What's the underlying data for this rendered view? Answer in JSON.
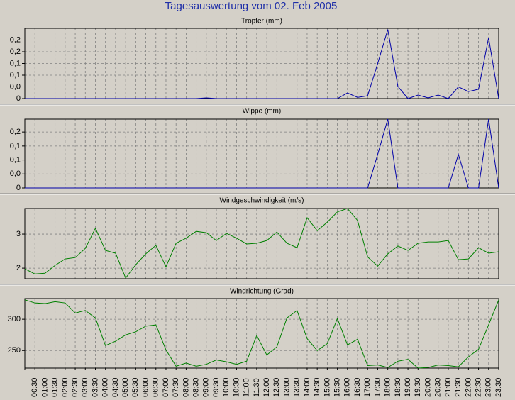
{
  "title": "Tagesauswertung vom 02. Feb 2005",
  "chart_data": [
    {
      "type": "line",
      "title": "Tropfer (mm)",
      "color": "#0000a8",
      "values": [
        0,
        0,
        0,
        0,
        0,
        0,
        0,
        0,
        0,
        0,
        0,
        0,
        0,
        0,
        0,
        0,
        0,
        0,
        0.003,
        0,
        0,
        0,
        0,
        0,
        0,
        0,
        0,
        0,
        0,
        0,
        0,
        0,
        0.024,
        0.005,
        0.012,
        0.15,
        0.295,
        0.052,
        0,
        0.015,
        0.003,
        0.015,
        0,
        0.05,
        0.03,
        0.04,
        0.26,
        0
      ],
      "ylim": [
        0,
        0.3
      ],
      "yticks": [
        0,
        {
          "value": 0.05,
          "label": "0,0"
        },
        {
          "value": 0.1,
          "label": "0,1"
        },
        {
          "value": 0.15,
          "label": "0,1"
        },
        {
          "value": 0.2,
          "label": "0,2"
        },
        {
          "value": 0.25,
          "label": "0,2"
        }
      ],
      "grid": true
    },
    {
      "type": "line",
      "title": "Wippe (mm)",
      "color": "#0000a8",
      "values": [
        0,
        0,
        0,
        0,
        0,
        0,
        0,
        0,
        0,
        0,
        0,
        0,
        0,
        0,
        0,
        0,
        0,
        0,
        0,
        0,
        0,
        0,
        0,
        0,
        0,
        0,
        0,
        0,
        0,
        0,
        0,
        0,
        0,
        0,
        0,
        0.12,
        0.246,
        0,
        0,
        0,
        0,
        0,
        0,
        0.12,
        0,
        0,
        0.246,
        0
      ],
      "ylim": [
        0,
        0.246
      ],
      "yticks": [
        0,
        {
          "value": 0.05,
          "label": "0,0"
        },
        {
          "value": 0.1,
          "label": "0,1"
        },
        {
          "value": 0.15,
          "label": "0,1"
        },
        {
          "value": 0.2,
          "label": "0,2"
        }
      ],
      "grid": true
    },
    {
      "type": "line",
      "title": "Windgeschwindigkeit (m/s)",
      "color": "#008000",
      "values": [
        1.98,
        1.83,
        1.85,
        2.08,
        2.27,
        2.31,
        2.58,
        3.17,
        2.52,
        2.44,
        1.71,
        2.1,
        2.42,
        2.67,
        2.04,
        2.73,
        2.88,
        3.08,
        3.04,
        2.81,
        3.02,
        2.88,
        2.71,
        2.73,
        2.81,
        3.06,
        2.73,
        2.6,
        3.48,
        3.1,
        3.35,
        3.65,
        3.75,
        3.4,
        2.33,
        2.06,
        2.42,
        2.65,
        2.52,
        2.73,
        2.77,
        2.77,
        2.81,
        2.25,
        2.27,
        2.6,
        2.44,
        2.48
      ],
      "ylim": [
        1.69,
        3.75
      ],
      "yticks": [
        2,
        3
      ],
      "grid": true
    },
    {
      "type": "line",
      "title": "Windrichtung (Grad)",
      "color": "#008000",
      "categories": [
        null,
        "00:30",
        "01:00",
        "01:30",
        "02:00",
        "02:30",
        "03:00",
        "03:30",
        "04:00",
        "04:30",
        "05:00",
        "05:30",
        "06:00",
        "06:30",
        "07:00",
        "07:30",
        "08:00",
        "08:30",
        "09:00",
        "09:30",
        "10:00",
        "10:30",
        "11:00",
        "11:30",
        "12:00",
        "12:30",
        "13:00",
        "13:30",
        "14:00",
        "14:30",
        "15:00",
        "15:30",
        "16:00",
        "16:30",
        "17:00",
        "17:30",
        "18:00",
        "18:30",
        "19:00",
        "19:30",
        "20:00",
        "20:30",
        "21:00",
        "21:30",
        "22:00",
        "22:30",
        "23:00",
        "23:30"
      ],
      "values": [
        331,
        326,
        325,
        328,
        326,
        310,
        314,
        302,
        258,
        265,
        275,
        280,
        289,
        291,
        251,
        225,
        230,
        225,
        228,
        235,
        232,
        228,
        233,
        274,
        243,
        256,
        302,
        314,
        269,
        250,
        261,
        301,
        259,
        268,
        226,
        227,
        223,
        233,
        236,
        222,
        223,
        227,
        226,
        224,
        240,
        252,
        291,
        331
      ],
      "ylim": [
        222,
        333
      ],
      "yticks": [
        250,
        300
      ],
      "grid": true
    }
  ]
}
